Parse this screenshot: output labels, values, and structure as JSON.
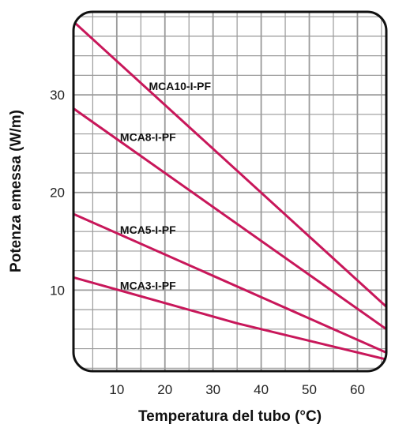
{
  "chart_data": {
    "type": "line",
    "title": "",
    "xlabel": "Temperatura del tubo (°C)",
    "ylabel": "Potenza emessa (W/m)",
    "xlim": [
      1,
      66
    ],
    "ylim": [
      1.7,
      38.5
    ],
    "xticks": [
      10,
      20,
      30,
      40,
      50,
      60
    ],
    "yticks": [
      10,
      20,
      30
    ],
    "grid": true,
    "line_color": "#c8175a",
    "grid_color": "#9a9a9a",
    "series": [
      {
        "name": "MCA10-I-PF",
        "x": [
          1,
          66
        ],
        "y": [
          37.5,
          8.3
        ]
      },
      {
        "name": "MCA8-I-PF",
        "x": [
          1,
          66
        ],
        "y": [
          28.6,
          6.0
        ]
      },
      {
        "name": "MCA5-I-PF",
        "x": [
          1,
          66
        ],
        "y": [
          17.8,
          3.6
        ]
      },
      {
        "name": "MCA3-I-PF",
        "x": [
          1,
          35,
          66
        ],
        "y": [
          11.3,
          6.6,
          2.9
        ]
      }
    ]
  }
}
